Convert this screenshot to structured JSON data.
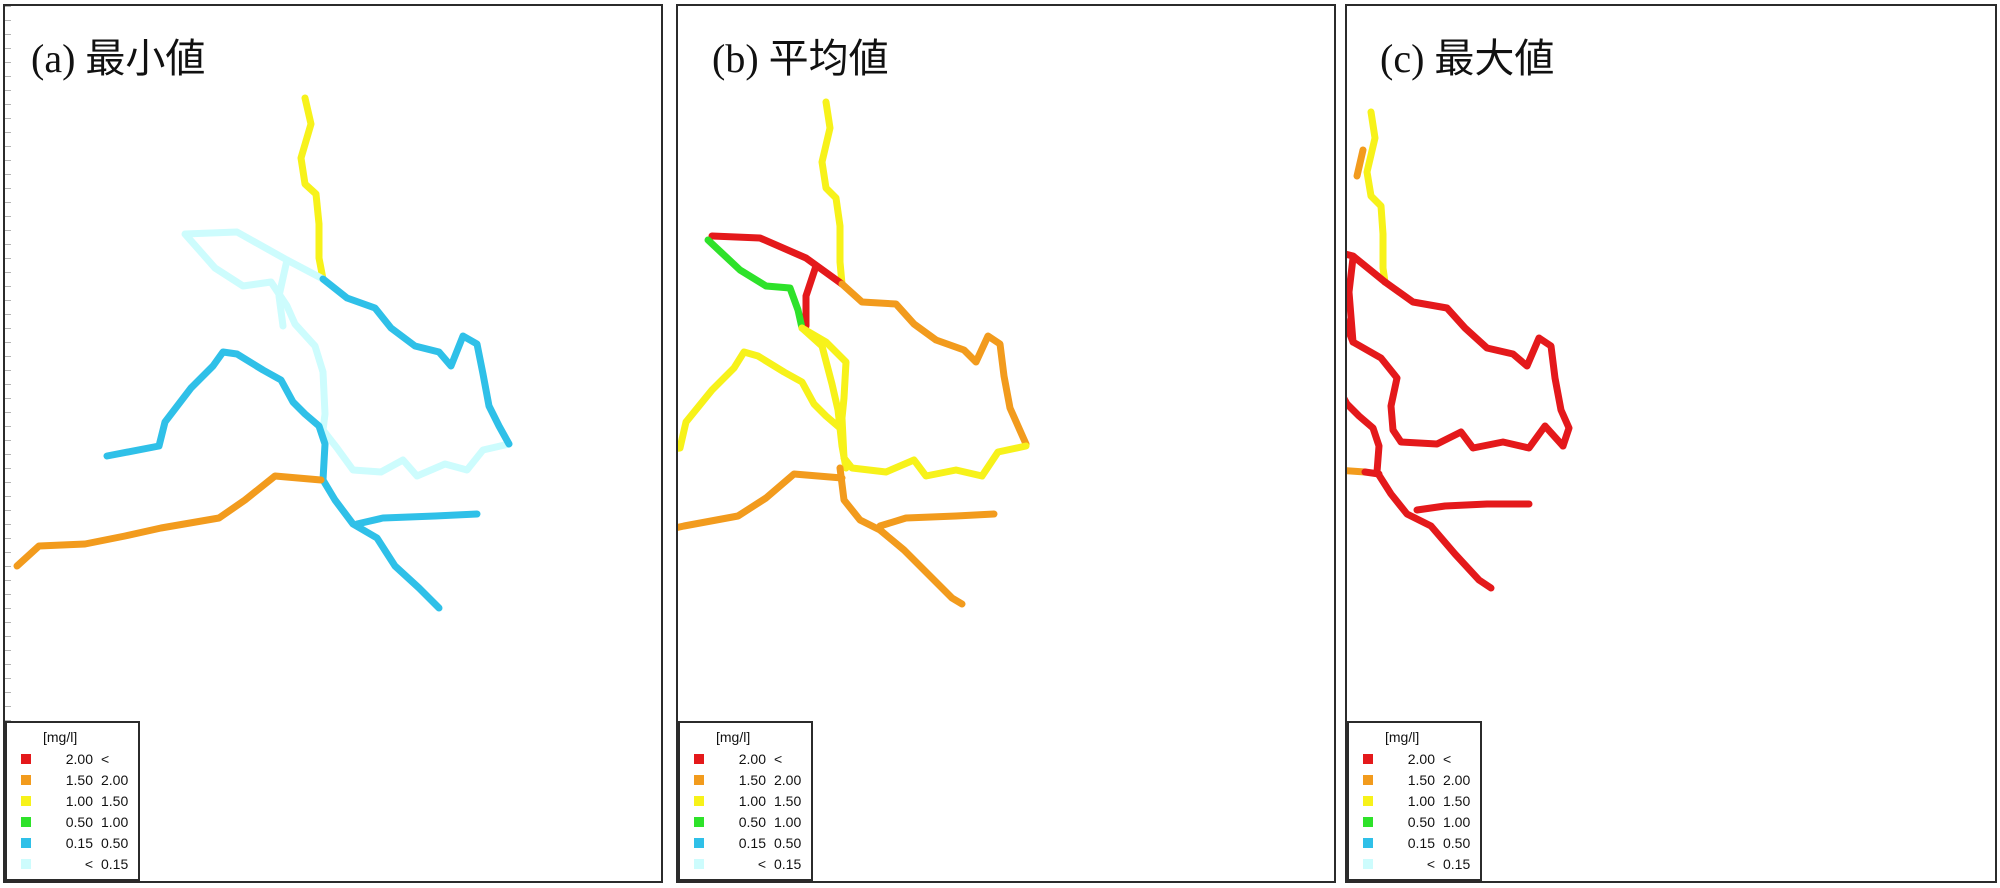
{
  "panels": [
    {
      "id": "a",
      "title": "(a) 最小値",
      "segments": [
        {
          "level": "yellow",
          "points": [
            [
              300,
              92
            ],
            [
              306,
              118
            ],
            [
              296,
              152
            ],
            [
              300,
              178
            ],
            [
              311,
              188
            ],
            [
              314,
              218
            ],
            [
              314,
              252
            ],
            [
              318,
              273
            ]
          ]
        },
        {
          "level": "lightcyan",
          "points": [
            [
              318,
              273
            ],
            [
              282,
              254
            ],
            [
              232,
              226
            ],
            [
              180,
              228
            ],
            [
              210,
              262
            ],
            [
              238,
              280
            ],
            [
              266,
              276
            ],
            [
              282,
              300
            ],
            [
              290,
              318
            ],
            [
              310,
              340
            ],
            [
              318,
              366
            ],
            [
              320,
              408
            ],
            [
              318,
              424
            ]
          ]
        },
        {
          "level": "lightcyan",
          "points": [
            [
              282,
              254
            ],
            [
              274,
              290
            ],
            [
              278,
              320
            ]
          ]
        },
        {
          "level": "lightcyan",
          "points": [
            [
              318,
              424
            ],
            [
              332,
              442
            ],
            [
              348,
              464
            ],
            [
              376,
              466
            ],
            [
              398,
              454
            ],
            [
              412,
              470
            ],
            [
              440,
              458
            ],
            [
              462,
              464
            ],
            [
              478,
              444
            ],
            [
              504,
              438
            ]
          ]
        },
        {
          "level": "blue",
          "points": [
            [
              318,
              273
            ],
            [
              342,
              292
            ],
            [
              370,
              302
            ],
            [
              386,
              322
            ],
            [
              410,
              340
            ],
            [
              434,
              346
            ],
            [
              446,
              360
            ],
            [
              458,
              330
            ],
            [
              472,
              338
            ],
            [
              478,
              368
            ],
            [
              484,
              400
            ],
            [
              494,
              420
            ],
            [
              504,
              438
            ]
          ]
        },
        {
          "level": "blue",
          "points": [
            [
              102,
              450
            ],
            [
              154,
              440
            ],
            [
              160,
              416
            ],
            [
              186,
              382
            ],
            [
              208,
              360
            ],
            [
              218,
              346
            ],
            [
              232,
              348
            ],
            [
              258,
              364
            ],
            [
              276,
              374
            ],
            [
              288,
              396
            ],
            [
              300,
              408
            ],
            [
              314,
              420
            ],
            [
              320,
              438
            ],
            [
              318,
              474
            ],
            [
              330,
              494
            ],
            [
              348,
              518
            ],
            [
              372,
              532
            ],
            [
              390,
              560
            ],
            [
              414,
              582
            ],
            [
              434,
              602
            ]
          ]
        },
        {
          "level": "blue",
          "points": [
            [
              352,
              518
            ],
            [
              378,
              512
            ],
            [
              430,
              510
            ],
            [
              472,
              508
            ]
          ]
        },
        {
          "level": "orange",
          "points": [
            [
              12,
              560
            ],
            [
              34,
              540
            ],
            [
              80,
              538
            ],
            [
              120,
              530
            ],
            [
              156,
              522
            ],
            [
              214,
              512
            ],
            [
              240,
              494
            ],
            [
              270,
              470
            ],
            [
              316,
              474
            ]
          ]
        }
      ]
    },
    {
      "id": "b",
      "title": "(b) 平均値",
      "segments": [
        {
          "level": "yellow",
          "points": [
            [
              150,
              96
            ],
            [
              154,
              122
            ],
            [
              146,
              156
            ],
            [
              150,
              182
            ],
            [
              160,
              192
            ],
            [
              164,
              220
            ],
            [
              164,
              256
            ],
            [
              166,
              278
            ]
          ]
        },
        {
          "level": "red",
          "points": [
            [
              166,
              278
            ],
            [
              130,
              252
            ],
            [
              84,
              232
            ],
            [
              36,
              230
            ]
          ]
        },
        {
          "level": "red",
          "points": [
            [
              140,
              260
            ],
            [
              130,
              290
            ],
            [
              130,
              320
            ]
          ]
        },
        {
          "level": "green",
          "points": [
            [
              32,
              234
            ],
            [
              64,
              264
            ],
            [
              90,
              280
            ],
            [
              114,
              282
            ],
            [
              122,
              304
            ],
            [
              126,
              322
            ]
          ]
        },
        {
          "level": "orange",
          "points": [
            [
              166,
              278
            ],
            [
              186,
              296
            ],
            [
              220,
              298
            ],
            [
              238,
              318
            ],
            [
              260,
              334
            ],
            [
              288,
              344
            ],
            [
              300,
              356
            ],
            [
              312,
              330
            ],
            [
              324,
              338
            ],
            [
              328,
              370
            ],
            [
              334,
              402
            ],
            [
              342,
              420
            ],
            [
              350,
              438
            ]
          ]
        },
        {
          "level": "yellow",
          "points": [
            [
              126,
              322
            ],
            [
              150,
              336
            ],
            [
              170,
              356
            ],
            [
              168,
              392
            ],
            [
              166,
              412
            ],
            [
              168,
              452
            ],
            [
              176,
              462
            ],
            [
              210,
              466
            ],
            [
              238,
              454
            ],
            [
              250,
              470
            ],
            [
              280,
              464
            ],
            [
              306,
              470
            ],
            [
              322,
              446
            ],
            [
              350,
              440
            ]
          ]
        },
        {
          "level": "yellow",
          "points": [
            [
              126,
              322
            ],
            [
              146,
              340
            ],
            [
              156,
              378
            ],
            [
              162,
              404
            ],
            [
              166,
              440
            ],
            [
              170,
              462
            ]
          ]
        },
        {
          "level": "yellow",
          "points": [
            [
              -46,
              448
            ],
            [
              4,
              442
            ],
            [
              10,
              416
            ],
            [
              36,
              384
            ],
            [
              58,
              362
            ],
            [
              68,
              346
            ],
            [
              82,
              350
            ],
            [
              108,
              366
            ],
            [
              126,
              376
            ],
            [
              138,
              398
            ],
            [
              150,
              410
            ],
            [
              164,
              422
            ]
          ]
        },
        {
          "level": "orange",
          "points": [
            [
              164,
              462
            ],
            [
              168,
              494
            ],
            [
              184,
              514
            ],
            [
              204,
              524
            ],
            [
              228,
              544
            ],
            [
              252,
              568
            ],
            [
              276,
              592
            ],
            [
              286,
              598
            ]
          ]
        },
        {
          "level": "orange",
          "points": [
            [
              204,
              520
            ],
            [
              230,
              512
            ],
            [
              280,
              510
            ],
            [
              318,
              508
            ]
          ]
        },
        {
          "level": "orange",
          "points": [
            [
              -138,
              558
            ],
            [
              -114,
              540
            ],
            [
              -68,
              536
            ],
            [
              -28,
              528
            ],
            [
              8,
              520
            ],
            [
              62,
              510
            ],
            [
              90,
              492
            ],
            [
              118,
              468
            ],
            [
              166,
              472
            ]
          ]
        }
      ]
    },
    {
      "id": "c",
      "title": "(c) 最大値",
      "segments": [
        {
          "level": "yellow",
          "points": [
            [
              14,
              106
            ],
            [
              18,
              132
            ],
            [
              10,
              166
            ],
            [
              14,
              190
            ],
            [
              24,
              200
            ],
            [
              26,
              228
            ],
            [
              26,
              262
            ],
            [
              28,
              276
            ]
          ]
        },
        {
          "level": "orange",
          "points": [
            [
              6,
              144
            ],
            [
              0,
              170
            ]
          ]
        },
        {
          "level": "red",
          "points": [
            [
              28,
              276
            ],
            [
              -4,
              250
            ],
            [
              -52,
              238
            ],
            [
              -110,
              236
            ]
          ]
        },
        {
          "level": "red",
          "points": [
            [
              -110,
              236
            ],
            [
              -80,
              266
            ],
            [
              -54,
              286
            ],
            [
              -30,
              290
            ],
            [
              -16,
              306
            ],
            [
              -4,
              336
            ]
          ]
        },
        {
          "level": "red",
          "points": [
            [
              -4,
              252
            ],
            [
              -8,
              286
            ],
            [
              -4,
              336
            ]
          ]
        },
        {
          "level": "red",
          "points": [
            [
              28,
              276
            ],
            [
              56,
              296
            ],
            [
              90,
              302
            ],
            [
              108,
              322
            ],
            [
              130,
              342
            ],
            [
              156,
              348
            ],
            [
              170,
              360
            ],
            [
              182,
              332
            ],
            [
              194,
              340
            ],
            [
              198,
              372
            ],
            [
              204,
              404
            ],
            [
              212,
              422
            ],
            [
              206,
              440
            ]
          ]
        },
        {
          "level": "red",
          "points": [
            [
              -4,
              336
            ],
            [
              24,
              352
            ],
            [
              40,
              372
            ],
            [
              34,
              400
            ],
            [
              36,
              424
            ],
            [
              44,
              436
            ],
            [
              80,
              438
            ],
            [
              104,
              426
            ],
            [
              116,
              442
            ],
            [
              146,
              436
            ],
            [
              172,
              442
            ],
            [
              188,
              420
            ],
            [
              206,
              440
            ]
          ]
        },
        {
          "level": "red",
          "points": [
            [
              -194,
              442
            ],
            [
              -144,
              436
            ],
            [
              -138,
              410
            ],
            [
              -112,
              378
            ],
            [
              -90,
              356
            ],
            [
              -80,
              346
            ],
            [
              -66,
              350
            ],
            [
              -40,
              366
            ],
            [
              -22,
              376
            ],
            [
              -10,
              398
            ],
            [
              2,
              410
            ],
            [
              16,
              422
            ],
            [
              22,
              440
            ],
            [
              20,
              466
            ],
            [
              34,
              488
            ],
            [
              50,
              508
            ],
            [
              74,
              520
            ],
            [
              98,
              548
            ],
            [
              122,
              574
            ],
            [
              134,
              582
            ]
          ]
        },
        {
          "level": "red",
          "points": [
            [
              60,
              504
            ],
            [
              88,
              500
            ],
            [
              130,
              498
            ],
            [
              172,
              498
            ]
          ]
        },
        {
          "level": "orange",
          "points": [
            [
              -282,
              546
            ],
            [
              -258,
              528
            ],
            [
              -212,
              524
            ],
            [
              -170,
              516
            ],
            [
              -136,
              510
            ],
            [
              -80,
              500
            ],
            [
              -52,
              482
            ],
            [
              -22,
              464
            ],
            [
              8,
              466
            ]
          ]
        },
        {
          "level": "red",
          "points": [
            [
              8,
              466
            ],
            [
              22,
              468
            ]
          ]
        }
      ]
    }
  ],
  "colors": {
    "red": "#e4191b",
    "orange": "#f29b1d",
    "yellow": "#f7f21a",
    "green": "#2ee22a",
    "blue": "#2fc0e8",
    "lightcyan": "#cdfcfd"
  },
  "legend": {
    "unit": "[mg/l]",
    "rows": [
      {
        "level": "red",
        "from": "2.00",
        "to": "<"
      },
      {
        "level": "orange",
        "from": "1.50",
        "to": "2.00"
      },
      {
        "level": "yellow",
        "from": "1.00",
        "to": "1.50"
      },
      {
        "level": "green",
        "from": "0.50",
        "to": "1.00"
      },
      {
        "level": "blue",
        "from": "0.15",
        "to": "0.50"
      },
      {
        "level": "lightcyan",
        "from": "<",
        "to": "0.15"
      }
    ]
  }
}
